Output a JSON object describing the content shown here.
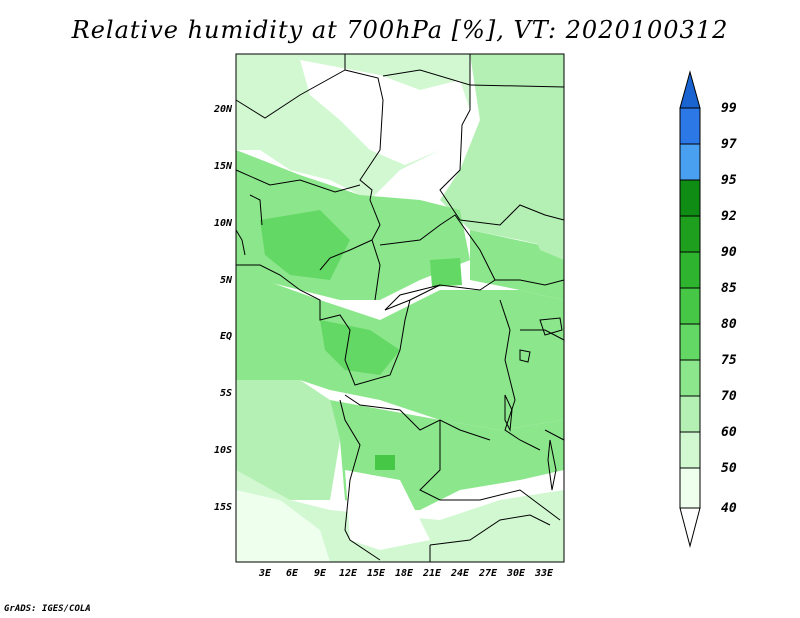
{
  "title": "Relative humidity at 700hPa [%], VT: 2020100312",
  "credit": "GrADS: IGES/COLA",
  "lat_labels": [
    "20N",
    "15N",
    "10N",
    "5N",
    "EQ",
    "5S",
    "10S",
    "15S"
  ],
  "lon_labels": [
    "3E",
    "6E",
    "9E",
    "12E",
    "15E",
    "18E",
    "21E",
    "24E",
    "27E",
    "30E",
    "33E"
  ],
  "colorbar": {
    "labels": [
      "99",
      "97",
      "95",
      "92",
      "90",
      "85",
      "80",
      "75",
      "70",
      "60",
      "50",
      "40"
    ],
    "colors": [
      "#1a64d2",
      "#2c78e6",
      "#4aa0f0",
      "#0f8c14",
      "#1ea01e",
      "#2eb42e",
      "#46c846",
      "#64d864",
      "#8ce68c",
      "#b4f0b4",
      "#d2f8d2",
      "#eeffee",
      "#ffffff"
    ]
  }
}
